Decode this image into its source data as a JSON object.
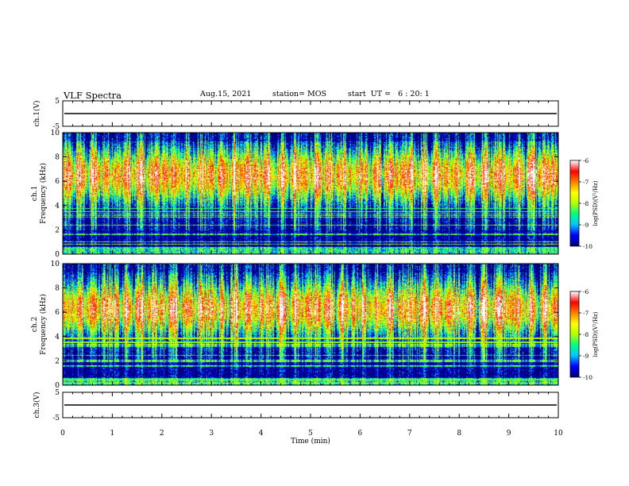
{
  "header": {
    "title": "VLF Spectra",
    "date": "Aug.15, 2021",
    "station": "station= MOS",
    "start": "start  UT =   6 : 20: 1"
  },
  "chart_data": {
    "type": "heatmap",
    "x_axis": {
      "label": "Time  (min)",
      "range": [
        0,
        10
      ],
      "ticks": [
        "0",
        "1",
        "2",
        "3",
        "4",
        "5",
        "6",
        "7",
        "8",
        "9",
        "10"
      ]
    },
    "panels": [
      {
        "id": "ch1-waveform",
        "kind": "line",
        "ylabel": "ch.1(V)",
        "ylim": [
          -5,
          5
        ],
        "yticks": [
          "5",
          "-5"
        ],
        "level": 0
      },
      {
        "id": "ch1-spectrogram",
        "kind": "heatmap",
        "ylabel": "ch.1",
        "ylabel2": "Frequency (kHz)",
        "ylim": [
          0,
          10
        ],
        "yticks": [
          "0",
          "2",
          "4",
          "6",
          "8",
          "10"
        ],
        "band_center_khz": 6.5,
        "colorbar": {
          "label": "log(PSD)(V²/Hz)",
          "range": [
            -10,
            -6
          ],
          "ticks": [
            "-6",
            "-7",
            "-8",
            "-9",
            "-10"
          ]
        }
      },
      {
        "id": "ch2-spectrogram",
        "kind": "heatmap",
        "ylabel": "ch.2",
        "ylabel2": "Frequency (kHz)",
        "ylim": [
          0,
          10
        ],
        "yticks": [
          "0",
          "2",
          "4",
          "6",
          "8",
          "10"
        ],
        "band_center_khz": 6.3,
        "colorbar": {
          "label": "log(PSD)(V²/Hz)",
          "range": [
            -10,
            -6
          ],
          "ticks": [
            "-6",
            "-7",
            "-8",
            "-9",
            "-10"
          ]
        }
      },
      {
        "id": "ch3-waveform",
        "kind": "line",
        "ylabel": "ch.3(V)",
        "ylim": [
          -5,
          5
        ],
        "yticks": [
          "5",
          "-5"
        ],
        "level": 0
      }
    ],
    "colormap": [
      "#000080",
      "#0000ff",
      "#00c8ff",
      "#00ff80",
      "#b4ff00",
      "#ffff00",
      "#ff8000",
      "#ff0000",
      "#ffffff"
    ]
  }
}
